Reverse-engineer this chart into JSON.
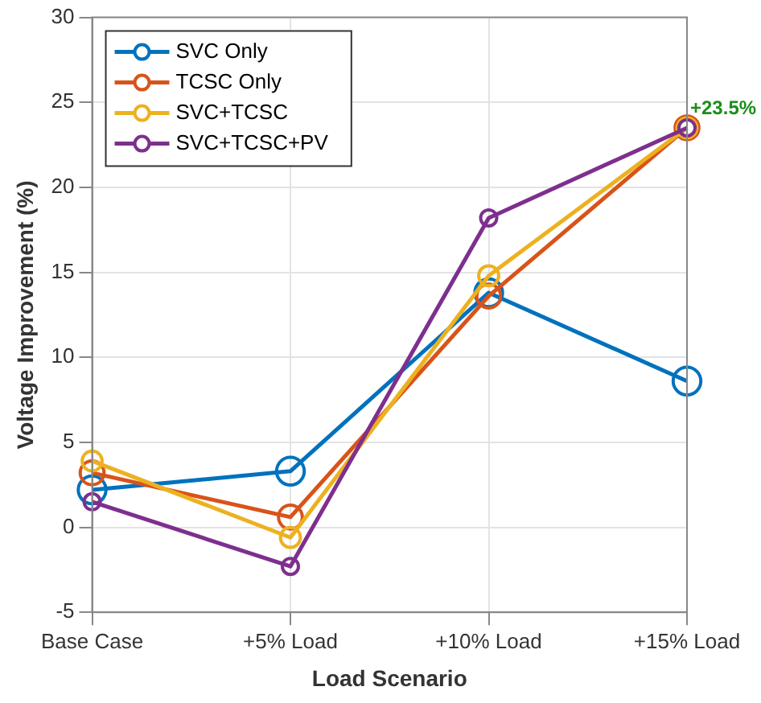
{
  "chart_data": {
    "type": "line",
    "xlabel": "Load Scenario",
    "ylabel": "Voltage Improvement (%)",
    "categories": [
      "Base Case",
      "+5% Load",
      "+10% Load",
      "+15% Load"
    ],
    "series": [
      {
        "name": "SVC Only",
        "color": "#0072bd",
        "values": [
          2.2,
          3.3,
          13.8,
          8.6
        ]
      },
      {
        "name": "TCSC Only",
        "color": "#d95319",
        "values": [
          3.2,
          0.6,
          13.6,
          23.5
        ]
      },
      {
        "name": "SVC+TCSC",
        "color": "#edb120",
        "values": [
          3.9,
          -0.6,
          14.8,
          23.5
        ]
      },
      {
        "name": "SVC+TCSC+PV",
        "color": "#7e2f8e",
        "values": [
          1.5,
          -2.3,
          18.2,
          23.5
        ]
      }
    ],
    "ylim": [
      -5,
      30
    ],
    "yticks": [
      -5,
      0,
      5,
      10,
      15,
      20,
      25,
      30
    ],
    "annotations": [
      {
        "text": "+23.5%",
        "x": "+15% Load",
        "y": 23.5
      }
    ],
    "grid": true,
    "legend": "top left",
    "marker": "circle",
    "line_style": "solid"
  }
}
